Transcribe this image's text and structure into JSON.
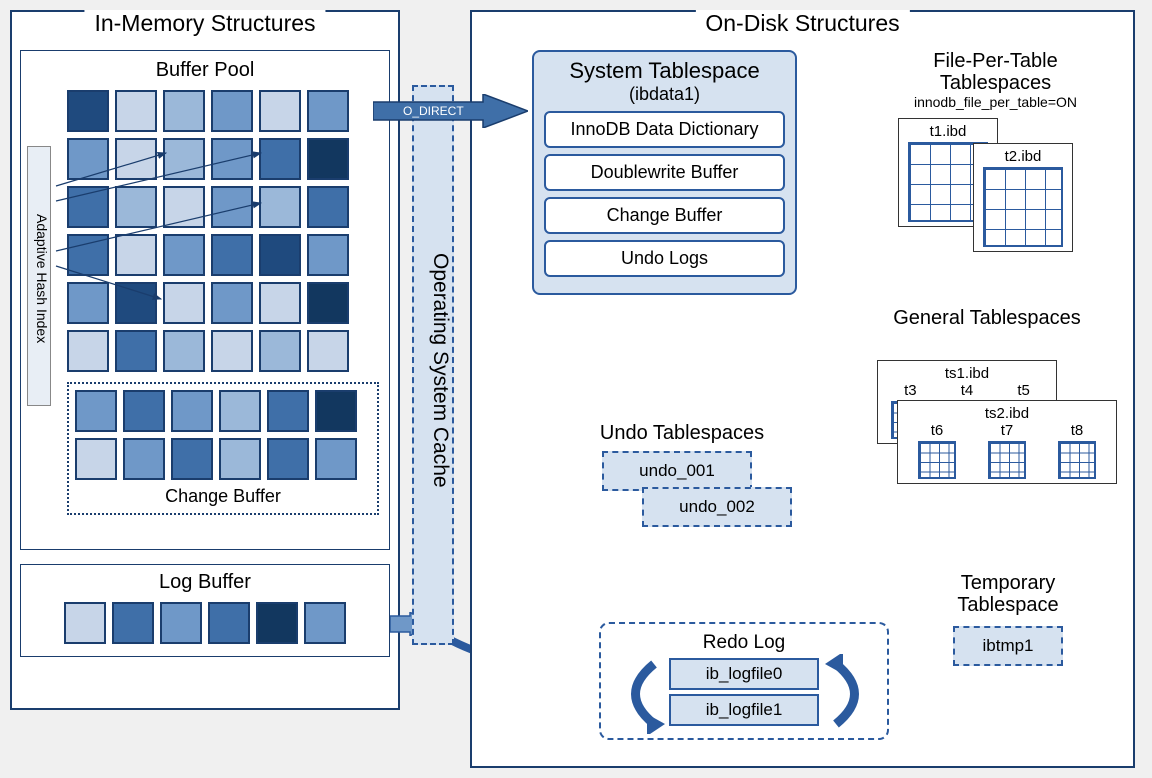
{
  "colors": {
    "border": "#1a3d6d",
    "accent": "#2b5a9e",
    "light_fill": "#d6e2f0",
    "shade1": "#c7d5e8",
    "shade2": "#9bb8d9",
    "shade3": "#6f98c8",
    "shade4": "#3f6fa8",
    "shade5": "#1f4a7e",
    "shade6": "#12375f"
  },
  "in_memory": {
    "title": "In-Memory Structures",
    "buffer_pool": {
      "title": "Buffer Pool",
      "ahi_label": "Adaptive Hash Index",
      "grid_colors": [
        [
          "#1f4a7e",
          "#c7d5e8",
          "#9bb8d9",
          "#6f98c8",
          "#c7d5e8",
          "#6f98c8"
        ],
        [
          "#6f98c8",
          "#c7d5e8",
          "#9bb8d9",
          "#6f98c8",
          "#3f6fa8",
          "#12375f"
        ],
        [
          "#3f6fa8",
          "#9bb8d9",
          "#c7d5e8",
          "#6f98c8",
          "#9bb8d9",
          "#3f6fa8"
        ],
        [
          "#3f6fa8",
          "#c7d5e8",
          "#6f98c8",
          "#3f6fa8",
          "#1f4a7e",
          "#6f98c8"
        ],
        [
          "#6f98c8",
          "#1f4a7e",
          "#c7d5e8",
          "#6f98c8",
          "#c7d5e8",
          "#12375f"
        ],
        [
          "#c7d5e8",
          "#3f6fa8",
          "#9bb8d9",
          "#c7d5e8",
          "#9bb8d9",
          "#c7d5e8"
        ]
      ],
      "change_buffer": {
        "label": "Change Buffer",
        "grid_colors": [
          [
            "#6f98c8",
            "#3f6fa8",
            "#6f98c8",
            "#9bb8d9",
            "#3f6fa8",
            "#12375f"
          ],
          [
            "#c7d5e8",
            "#6f98c8",
            "#3f6fa8",
            "#9bb8d9",
            "#3f6fa8",
            "#6f98c8"
          ]
        ]
      }
    },
    "log_buffer": {
      "title": "Log Buffer",
      "cells": [
        "#c7d5e8",
        "#3f6fa8",
        "#6f98c8",
        "#3f6fa8",
        "#12375f",
        "#6f98c8"
      ]
    }
  },
  "os_cache": {
    "label": "Operating System Cache",
    "o_direct_label": "O_DIRECT"
  },
  "on_disk": {
    "title": "On-Disk Structures",
    "system_tablespace": {
      "title": "System Tablespace",
      "subtitle": "(ibdata1)",
      "items": [
        "InnoDB Data Dictionary",
        "Doublewrite Buffer",
        "Change Buffer",
        "Undo Logs"
      ]
    },
    "undo_tablespaces": {
      "title": "Undo Tablespaces",
      "files": [
        "undo_001",
        "undo_002"
      ]
    },
    "redo_log": {
      "title": "Redo Log",
      "files": [
        "ib_logfile0",
        "ib_logfile1"
      ]
    },
    "file_per_table": {
      "title": "File-Per-Table Tablespaces",
      "subtitle": "innodb_file_per_table=ON",
      "files": [
        "t1.ibd",
        "t2.ibd"
      ]
    },
    "general_tablespaces": {
      "title": "General Tablespaces",
      "ts1": {
        "file": "ts1.ibd",
        "tables": [
          "t3",
          "t4",
          "t5"
        ]
      },
      "ts2": {
        "file": "ts2.ibd",
        "tables": [
          "t6",
          "t7",
          "t8"
        ]
      }
    },
    "temporary_tablespace": {
      "title": "Temporary Tablespace",
      "file": "ibtmp1"
    }
  }
}
